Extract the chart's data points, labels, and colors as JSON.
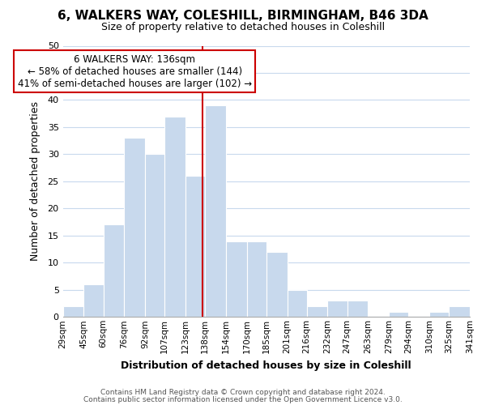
{
  "title": "6, WALKERS WAY, COLESHILL, BIRMINGHAM, B46 3DA",
  "subtitle": "Size of property relative to detached houses in Coleshill",
  "xlabel": "Distribution of detached houses by size in Coleshill",
  "ylabel": "Number of detached properties",
  "bin_edges": [
    29,
    45,
    60,
    76,
    92,
    107,
    123,
    138,
    154,
    170,
    185,
    201,
    216,
    232,
    247,
    263,
    279,
    294,
    310,
    325,
    341
  ],
  "counts": [
    2,
    6,
    17,
    33,
    30,
    37,
    26,
    39,
    14,
    14,
    12,
    5,
    2,
    3,
    3,
    0,
    1,
    0,
    1,
    2
  ],
  "bar_color": "#c8d9ed",
  "bar_edge_color": "#ffffff",
  "property_line_x": 136,
  "property_line_color": "#cc0000",
  "ylim": [
    0,
    50
  ],
  "yticks": [
    0,
    5,
    10,
    15,
    20,
    25,
    30,
    35,
    40,
    45,
    50
  ],
  "annotation_title": "6 WALKERS WAY: 136sqm",
  "annotation_line1": "← 58% of detached houses are smaller (144)",
  "annotation_line2": "41% of semi-detached houses are larger (102) →",
  "annotation_box_color": "#ffffff",
  "annotation_box_edge": "#cc0000",
  "footer1": "Contains HM Land Registry data © Crown copyright and database right 2024.",
  "footer2": "Contains public sector information licensed under the Open Government Licence v3.0.",
  "tick_labels": [
    "29sqm",
    "45sqm",
    "60sqm",
    "76sqm",
    "92sqm",
    "107sqm",
    "123sqm",
    "138sqm",
    "154sqm",
    "170sqm",
    "185sqm",
    "201sqm",
    "216sqm",
    "232sqm",
    "247sqm",
    "263sqm",
    "279sqm",
    "294sqm",
    "310sqm",
    "325sqm",
    "341sqm"
  ],
  "background_color": "#ffffff",
  "grid_color": "#c8d9ed",
  "title_fontsize": 11,
  "subtitle_fontsize": 9,
  "xlabel_fontsize": 9,
  "ylabel_fontsize": 9,
  "tick_fontsize": 7.5,
  "footer_fontsize": 6.5,
  "annotation_fontsize": 8.5
}
